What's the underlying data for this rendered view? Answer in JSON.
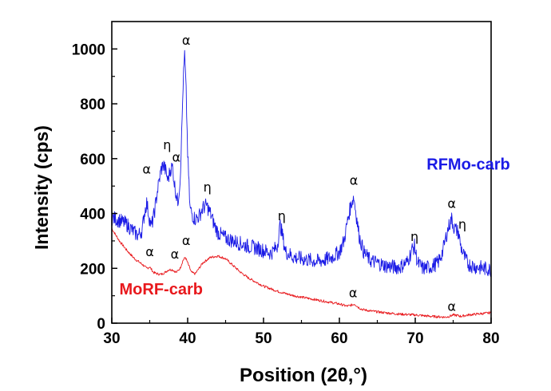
{
  "chart_data": {
    "type": "line",
    "xlabel": "Position (2θ,°)",
    "ylabel": "Intensity (cps)",
    "xlim": [
      30,
      80
    ],
    "ylim": [
      0,
      1100
    ],
    "xticks": [
      30,
      40,
      50,
      60,
      70,
      80
    ],
    "yticks": [
      0,
      200,
      400,
      600,
      800,
      1000
    ],
    "grid": false,
    "series": [
      {
        "name": "RFMo-carb",
        "color": "#1a1ae6",
        "x": [
          30,
          31,
          32,
          33,
          33.5,
          34,
          34.3,
          34.6,
          34.9,
          35.2,
          35.6,
          36,
          36.5,
          36.8,
          37.1,
          37.4,
          37.7,
          38,
          38.3,
          38.7,
          39,
          39.2,
          39.4,
          39.6,
          39.8,
          40,
          40.3,
          40.7,
          41,
          41.5,
          42,
          42.5,
          43,
          43.5,
          44,
          45,
          46,
          47,
          48,
          49,
          50,
          51,
          51.8,
          52.2,
          52.5,
          52.9,
          53.5,
          54,
          55,
          56,
          57,
          58,
          59,
          60,
          60.6,
          61.2,
          61.6,
          61.9,
          62.2,
          62.6,
          63.2,
          64,
          65,
          66,
          67,
          68,
          69,
          69.6,
          69.9,
          70.3,
          71,
          72,
          73,
          73.6,
          74.1,
          74.5,
          74.8,
          75.1,
          75.4,
          75.7,
          76,
          76.5,
          77,
          78,
          79,
          80
        ],
        "y": [
          385,
          375,
          360,
          330,
          320,
          340,
          400,
          440,
          390,
          350,
          400,
          480,
          560,
          580,
          555,
          520,
          560,
          570,
          500,
          440,
          520,
          680,
          870,
          980,
          840,
          620,
          420,
          390,
          380,
          390,
          420,
          430,
          400,
          360,
          330,
          310,
          300,
          290,
          280,
          275,
          265,
          255,
          280,
          360,
          320,
          260,
          250,
          240,
          235,
          230,
          225,
          230,
          240,
          260,
          300,
          390,
          440,
          460,
          400,
          320,
          260,
          230,
          220,
          210,
          205,
          205,
          225,
          270,
          280,
          220,
          200,
          205,
          220,
          260,
          320,
          360,
          380,
          350,
          340,
          330,
          280,
          240,
          215,
          205,
          200,
          195
        ]
      },
      {
        "name": "MoRF-carb",
        "color": "#e8181c",
        "x": [
          30,
          31,
          32,
          33,
          34,
          34.6,
          35,
          35.5,
          36,
          36.5,
          37,
          37.5,
          38,
          38.5,
          39,
          39.4,
          39.7,
          40,
          40.5,
          41,
          41.5,
          42,
          43,
          44,
          45,
          46,
          47,
          48,
          49,
          50,
          52,
          54,
          56,
          58,
          60,
          61,
          61.6,
          62,
          62.5,
          63,
          64,
          66,
          68,
          70,
          72,
          74,
          74.5,
          75,
          75.6,
          76,
          77,
          78,
          80
        ],
        "y": [
          345,
          300,
          265,
          235,
          215,
          200,
          205,
          185,
          180,
          178,
          185,
          195,
          195,
          185,
          200,
          230,
          240,
          220,
          185,
          180,
          200,
          220,
          240,
          245,
          235,
          210,
          185,
          165,
          150,
          135,
          115,
          100,
          90,
          80,
          70,
          62,
          66,
          70,
          58,
          50,
          45,
          38,
          33,
          30,
          25,
          22,
          25,
          30,
          28,
          25,
          30,
          33,
          38
        ]
      }
    ],
    "series_labels": [
      {
        "text": "RFMo-carb",
        "x": 77,
        "y": 560
      },
      {
        "text": "MoRF-carb",
        "x": 36.5,
        "y": 105
      }
    ],
    "annotations": [
      {
        "text": "α",
        "x": 34.6,
        "y": 545
      },
      {
        "text": "η",
        "x": 37.3,
        "y": 635
      },
      {
        "text": "α",
        "x": 38.5,
        "y": 590
      },
      {
        "text": "α",
        "x": 39.8,
        "y": 1015
      },
      {
        "text": "η",
        "x": 42.6,
        "y": 480
      },
      {
        "text": "η",
        "x": 52.4,
        "y": 375
      },
      {
        "text": "α",
        "x": 61.9,
        "y": 505
      },
      {
        "text": "η",
        "x": 69.9,
        "y": 300
      },
      {
        "text": "α",
        "x": 74.8,
        "y": 420
      },
      {
        "text": "η",
        "x": 76.2,
        "y": 345
      },
      {
        "text": "α",
        "x": 35.0,
        "y": 245
      },
      {
        "text": "α",
        "x": 38.3,
        "y": 235
      },
      {
        "text": "α",
        "x": 39.8,
        "y": 285
      },
      {
        "text": "α",
        "x": 61.8,
        "y": 95
      },
      {
        "text": "α",
        "x": 74.8,
        "y": 45
      }
    ]
  }
}
